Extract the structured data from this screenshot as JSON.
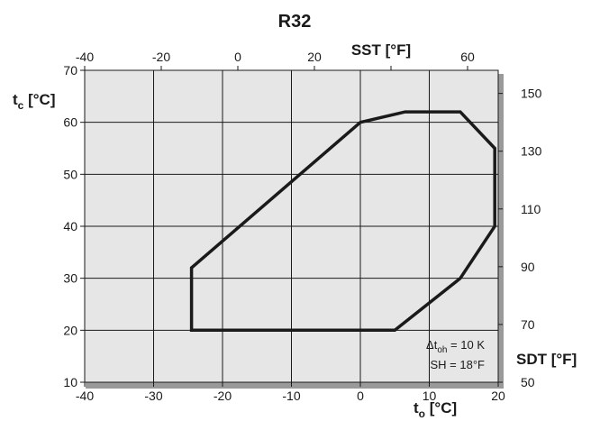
{
  "chart_data": {
    "type": "line",
    "title": "R32",
    "xlabel": "to [°C]",
    "xlabel_parts": {
      "main": "t",
      "sub": "o",
      "unit": " [°C]"
    },
    "ylabel": "tc [°C]",
    "ylabel_parts": {
      "main": "t",
      "sub": "c",
      "unit": " [°C]"
    },
    "x2label": "SST [°F]",
    "y2label": "SDT [°F]",
    "xlim": [
      -40,
      20
    ],
    "ylim": [
      10,
      70
    ],
    "x_ticks": [
      -40,
      -30,
      -20,
      -10,
      0,
      10,
      20
    ],
    "y_ticks": [
      10,
      20,
      30,
      40,
      50,
      60,
      70
    ],
    "x2_ticks": [
      -40,
      -20,
      0,
      20,
      40,
      60
    ],
    "x2_tick_labels": [
      "-40",
      "-20",
      "0",
      "20",
      "",
      "60"
    ],
    "y2_ticks": [
      50,
      70,
      90,
      110,
      130,
      150
    ],
    "grid": true,
    "series": [
      {
        "closed": true,
        "x": [
          -24.5,
          -24.5,
          0,
          6.5,
          14.5,
          19.5,
          19.5,
          19.5,
          14.5,
          5,
          -24.5
        ],
        "y": [
          20,
          32,
          60,
          62,
          62,
          55,
          47,
          40,
          30,
          20,
          20
        ]
      }
    ],
    "annotations": [
      {
        "main": "Δt",
        "sub": "oh",
        "rest": " = 10 K"
      },
      {
        "text": "SH = 18°F"
      }
    ],
    "colors": {
      "plot_bg": "#e6e6e6",
      "grid": "#1a1a1a",
      "line": "#1a1a1a",
      "frame_shadow": "#9a9a9a"
    }
  }
}
